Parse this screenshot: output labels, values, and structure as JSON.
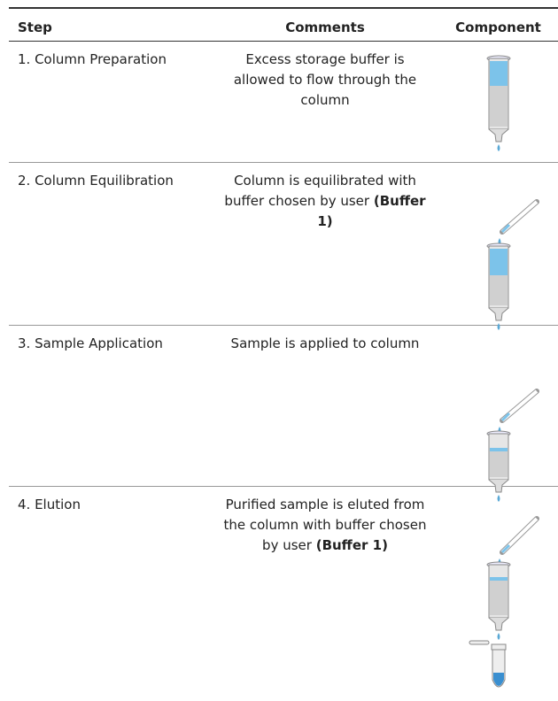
{
  "table": {
    "headers": [
      "Step",
      "Comments",
      "Component"
    ],
    "rows": [
      {
        "step": "1. Column Preparation",
        "comment": "Excess storage buffer is allowed to flow through the column"
      },
      {
        "step": "2. Column Equilibration",
        "comment": "Column is equilibrated with buffer chosen by user",
        "comment_bold": "(Buffer 1)"
      },
      {
        "step": "3. Sample Application",
        "comment": "Sample is applied to column"
      },
      {
        "step": "4. Elution",
        "comment": "Purified sample is eluted from the column with buffer chosen by user",
        "comment_bold": "(Buffer 1)"
      }
    ]
  }
}
